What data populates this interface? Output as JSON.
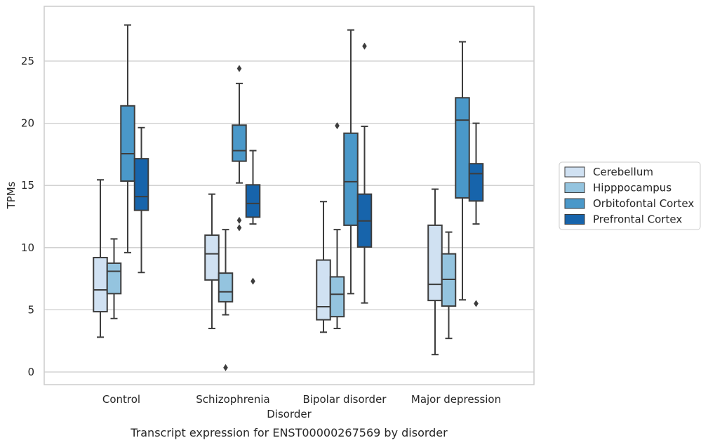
{
  "chart_data": {
    "type": "box",
    "title": "",
    "caption": "Transcript expression for ENST00000267569 by disorder",
    "xlabel": "Disorder",
    "ylabel": "TPMs",
    "ylim": [
      -1,
      29
    ],
    "yticks": [
      0,
      5,
      10,
      15,
      20,
      25
    ],
    "grid": "horizontal",
    "legend_position": "right",
    "categories": [
      "Control",
      "Schizophrenia",
      "Bipolar disorder",
      "Major depression"
    ],
    "series": [
      {
        "name": "Cerebellum",
        "color": "#d0e1f2",
        "boxes": [
          {
            "whislo": 2.8,
            "q1": 4.85,
            "med": 6.6,
            "q3": 9.2,
            "whishi": 15.45,
            "fliers": []
          },
          {
            "whislo": 3.5,
            "q1": 7.4,
            "med": 9.5,
            "q3": 11.0,
            "whishi": 14.3,
            "fliers": []
          },
          {
            "whislo": 3.2,
            "q1": 4.2,
            "med": 5.25,
            "q3": 9.0,
            "whishi": 13.7,
            "fliers": []
          },
          {
            "whislo": 1.4,
            "q1": 5.75,
            "med": 7.05,
            "q3": 11.8,
            "whishi": 14.7,
            "fliers": []
          }
        ]
      },
      {
        "name": "Hipppocampus",
        "color": "#94c4df",
        "boxes": [
          {
            "whislo": 4.3,
            "q1": 6.3,
            "med": 8.1,
            "q3": 8.75,
            "whishi": 10.7,
            "fliers": []
          },
          {
            "whislo": 4.6,
            "q1": 5.65,
            "med": 6.45,
            "q3": 7.95,
            "whishi": 11.45,
            "fliers": [
              0.35
            ]
          },
          {
            "whislo": 3.5,
            "q1": 4.45,
            "med": 6.25,
            "q3": 7.65,
            "whishi": 11.45,
            "fliers": [
              19.8
            ]
          },
          {
            "whislo": 2.7,
            "q1": 5.3,
            "med": 7.45,
            "q3": 9.5,
            "whishi": 11.25,
            "fliers": []
          }
        ]
      },
      {
        "name": "Orbitofontal Cortex",
        "color": "#4a98c9",
        "boxes": [
          {
            "whislo": 9.6,
            "q1": 15.35,
            "med": 17.55,
            "q3": 21.4,
            "whishi": 27.9,
            "fliers": []
          },
          {
            "whislo": 15.2,
            "q1": 16.95,
            "med": 17.8,
            "q3": 19.85,
            "whishi": 23.2,
            "fliers": [
              24.4,
              12.2,
              11.6
            ]
          },
          {
            "whislo": 6.3,
            "q1": 11.8,
            "med": 15.3,
            "q3": 19.2,
            "whishi": 27.5,
            "fliers": []
          },
          {
            "whislo": 5.8,
            "q1": 14.0,
            "med": 20.25,
            "q3": 22.05,
            "whishi": 26.55,
            "fliers": []
          }
        ]
      },
      {
        "name": "Prefrontal Cortex",
        "color": "#1764ab",
        "boxes": [
          {
            "whislo": 8.0,
            "q1": 13.0,
            "med": 14.1,
            "q3": 17.15,
            "whishi": 19.65,
            "fliers": []
          },
          {
            "whislo": 11.9,
            "q1": 12.45,
            "med": 13.55,
            "q3": 15.05,
            "whishi": 17.8,
            "fliers": [
              7.3
            ]
          },
          {
            "whislo": 5.55,
            "q1": 10.05,
            "med": 12.15,
            "q3": 14.3,
            "whishi": 19.75,
            "fliers": [
              26.2
            ]
          },
          {
            "whislo": 11.9,
            "q1": 13.75,
            "med": 15.95,
            "q3": 16.75,
            "whishi": 20.0,
            "fliers": [
              5.5
            ]
          }
        ]
      }
    ]
  }
}
